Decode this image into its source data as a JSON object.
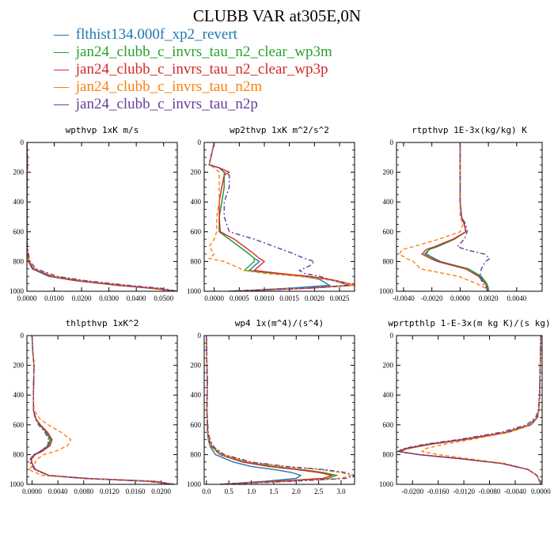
{
  "figure": {
    "title": "CLUBB VAR at305E,0N"
  },
  "legend": [
    {
      "marker": "—",
      "label": "flthist134.000f_xp2_revert",
      "color": "#1f77b4"
    },
    {
      "marker": "—",
      "label": "jan24_clubb_c_invrs_tau_n2_clear_wp3m",
      "color": "#2ca02c"
    },
    {
      "marker": "—",
      "label": "jan24_clubb_c_invrs_tau_n2_clear_wp3p",
      "color": "#d62728"
    },
    {
      "marker": "—",
      "label": "jan24_clubb_c_invrs_tau_n2m",
      "color": "#ff7f0e"
    },
    {
      "marker": "—",
      "label": "jan24_clubb_c_invrs_tau_n2p",
      "color": "#6a3d9a"
    }
  ],
  "chart_data": [
    {
      "type": "line",
      "title": "wpthvp 1xK m/s",
      "ylim": [
        1000,
        0
      ],
      "xlim": [
        0,
        0.055
      ],
      "xticks": [
        "0.0000",
        "0.0100",
        "0.0200",
        "0.0300",
        "0.0400",
        "0.0500"
      ],
      "xtick_values": [
        0,
        0.01,
        0.02,
        0.03,
        0.04,
        0.05
      ],
      "yticks": [
        "0",
        "200",
        "400",
        "600",
        "800",
        "1000"
      ],
      "y": [
        0,
        150,
        300,
        500,
        600,
        700,
        800,
        850,
        900,
        930,
        960,
        980,
        1000
      ],
      "series": [
        {
          "x": [
            0,
            0.0002,
            0,
            0,
            0,
            0,
            0.0005,
            0.002,
            0.008,
            0.018,
            0.033,
            0.045,
            0.055
          ]
        },
        {
          "x": [
            0,
            0.0002,
            0,
            0,
            0,
            0,
            0.0006,
            0.0025,
            0.009,
            0.019,
            0.034,
            0.046,
            0.055
          ]
        },
        {
          "x": [
            0,
            0.0002,
            0,
            0,
            0,
            0,
            0.0006,
            0.0024,
            0.009,
            0.019,
            0.034,
            0.046,
            0.055
          ]
        },
        {
          "x": [
            0,
            0.0002,
            0,
            0,
            0,
            0,
            0.0008,
            0.003,
            0.01,
            0.021,
            0.036,
            0.048,
            0.055
          ]
        },
        {
          "x": [
            0,
            0.0002,
            0,
            0,
            0,
            0.0002,
            0.001,
            0.0035,
            0.011,
            0.022,
            0.037,
            0.049,
            0.055
          ]
        }
      ]
    },
    {
      "type": "line",
      "title": "wp2thvp 1xK m^2/s^2",
      "ylim": [
        1000,
        0
      ],
      "xlim": [
        -0.0002,
        0.0028
      ],
      "xticks": [
        "0.0000",
        "0.0005",
        "0.0010",
        "0.0015",
        "0.0020",
        "0.0025"
      ],
      "xtick_values": [
        0,
        0.0005,
        0.001,
        0.0015,
        0.002,
        0.0025
      ],
      "yticks": [
        "0",
        "200",
        "400",
        "600",
        "800",
        "1000"
      ],
      "y": [
        0,
        150,
        170,
        200,
        220,
        300,
        400,
        500,
        600,
        650,
        700,
        750,
        780,
        800,
        830,
        860,
        880,
        900,
        920,
        940,
        960,
        980,
        1000
      ],
      "series": [
        {
          "x": [
            0,
            -0.0001,
            0.0001,
            0.0002,
            0.0002,
            0.0002,
            0.00015,
            0.0001,
            0.0001,
            0.0003,
            0.0005,
            0.0007,
            0.0008,
            0.0009,
            0.0008,
            0.0007,
            0.0012,
            0.0018,
            0.0021,
            0.0022,
            0.0023,
            0.0015,
            0.0003
          ]
        },
        {
          "x": [
            0,
            -0.0001,
            0.0001,
            0.0002,
            0.0002,
            0.0002,
            0.00015,
            0.0001,
            0.0001,
            0.0003,
            0.0005,
            0.0007,
            0.0008,
            0.0008,
            0.0007,
            0.0006,
            0.0012,
            0.0019,
            0.0023,
            0.0025,
            0.0027,
            0.0018,
            0.0003
          ]
        },
        {
          "x": [
            0,
            -0.0001,
            0.0001,
            0.0003,
            0.0002,
            0.00015,
            0.0001,
            0.0001,
            0.00012,
            0.0004,
            0.0006,
            0.0008,
            0.0009,
            0.001,
            0.0009,
            0.0008,
            0.0013,
            0.0019,
            0.0023,
            0.0026,
            0.0028,
            0.0019,
            0.0004
          ]
        },
        {
          "x": [
            0,
            -0.0001,
            0,
            0.0001,
            0.0001,
            0.0001,
            0.0001,
            5e-05,
            5e-05,
            0,
            -0.0001,
            0,
            -0.0001,
            0.0002,
            0.0004,
            0.0006,
            0.001,
            0.0017,
            0.0022,
            0.0026,
            0.0028,
            0.0017,
            0.0003
          ]
        },
        {
          "x": [
            0,
            -0.0001,
            0.0001,
            0.0002,
            0.0003,
            0.0003,
            0.0002,
            0.0002,
            0.0003,
            0.0008,
            0.0012,
            0.0016,
            0.0018,
            0.002,
            0.0019,
            0.0017,
            0.0018,
            0.0021,
            0.0023,
            0.0025,
            0.0027,
            0.0018,
            0.0003
          ]
        }
      ]
    },
    {
      "type": "line",
      "title": "rtpthvp 1E-3x(kg/kg) K",
      "ylim": [
        1000,
        0
      ],
      "xlim": [
        -0.0045,
        0.0058
      ],
      "xticks": [
        "-0.0040",
        "-0.0020",
        "0.0000",
        "0.0020",
        "0.0040"
      ],
      "xtick_values": [
        -0.004,
        -0.002,
        0,
        0.002,
        0.004
      ],
      "yticks": [
        "0",
        "200",
        "400",
        "600",
        "800",
        "1000"
      ],
      "y": [
        0,
        200,
        400,
        500,
        550,
        600,
        650,
        700,
        720,
        750,
        780,
        800,
        850,
        900,
        950,
        980,
        1000
      ],
      "series": [
        {
          "x": [
            0,
            0,
            0,
            0.0001,
            0.0003,
            0.0004,
            -0.0004,
            -0.0016,
            -0.0022,
            -0.0024,
            -0.0018,
            -0.0014,
            0.0006,
            0.0014,
            0.0019,
            0.0019,
            0.0019
          ]
        },
        {
          "x": [
            0,
            0,
            0,
            0.0001,
            0.0003,
            0.0004,
            -0.0004,
            -0.0016,
            -0.0022,
            -0.0025,
            -0.0019,
            -0.0015,
            0.0006,
            0.0015,
            0.0019,
            0.002,
            0.002
          ]
        },
        {
          "x": [
            0,
            0,
            0,
            0.0001,
            0.0003,
            0.0004,
            -0.0005,
            -0.0018,
            -0.0024,
            -0.0027,
            -0.0021,
            -0.0016,
            0.0004,
            0.0013,
            0.0018,
            0.0019,
            0.0019
          ]
        },
        {
          "x": [
            0,
            0,
            0,
            0,
            0.0002,
            0,
            -0.0015,
            -0.0033,
            -0.0041,
            -0.0043,
            -0.0038,
            -0.0033,
            -0.0028,
            -0.0001,
            0.0012,
            0.0018,
            0.0019
          ]
        },
        {
          "x": [
            0,
            0,
            0,
            0.0001,
            0.0004,
            0.0005,
            0.0003,
            -0.0002,
            0.0004,
            0.0017,
            0.0021,
            0.0018,
            0.0015,
            0.0014,
            0.0016,
            0.0019,
            0.002
          ]
        }
      ]
    },
    {
      "type": "line",
      "title": "thlpthvp 1xK^2",
      "ylim": [
        1000,
        0
      ],
      "xlim": [
        -0.0008,
        0.0225
      ],
      "xticks": [
        "0.0000",
        "0.0040",
        "0.0080",
        "0.0120",
        "0.0160",
        "0.0200"
      ],
      "xtick_values": [
        0,
        0.004,
        0.008,
        0.012,
        0.016,
        0.02
      ],
      "yticks": [
        "0",
        "200",
        "400",
        "600",
        "800",
        "1000"
      ],
      "y": [
        0,
        100,
        200,
        400,
        500,
        560,
        600,
        650,
        700,
        740,
        780,
        800,
        830,
        860,
        900,
        940,
        960,
        980,
        1000
      ],
      "series": [
        {
          "x": [
            0,
            0.0001,
            0.0003,
            0.0002,
            0.0002,
            0.0006,
            0.0012,
            0.0022,
            0.0028,
            0.0025,
            0.0012,
            0.0003,
            -0.0002,
            0,
            0.0005,
            0.0025,
            0.008,
            0.018,
            0.022
          ]
        },
        {
          "x": [
            0,
            0.0001,
            0.0003,
            0.0002,
            0.0002,
            0.0006,
            0.0012,
            0.0022,
            0.0029,
            0.0026,
            0.0013,
            0.0004,
            -0.0002,
            0,
            0.0005,
            0.0026,
            0.0085,
            0.019,
            0.022
          ]
        },
        {
          "x": [
            0,
            0.0001,
            0.0003,
            0.0002,
            0.0002,
            0.0006,
            0.0013,
            0.0024,
            0.0031,
            0.0028,
            0.0015,
            0.0005,
            -0.0001,
            0,
            0.0005,
            0.0026,
            0.0085,
            0.019,
            0.022
          ]
        },
        {
          "x": [
            0,
            0.0001,
            0.0003,
            0.0002,
            0.0003,
            0.0012,
            0.0025,
            0.0045,
            0.006,
            0.0055,
            0.0035,
            0.0018,
            0.0008,
            0.0004,
            -0.0005,
            0.0015,
            0.008,
            0.018,
            0.022
          ]
        },
        {
          "x": [
            0,
            0.0001,
            0.0003,
            0.0002,
            0.0002,
            0.0005,
            0.001,
            0.002,
            0.0026,
            0.0024,
            0.0012,
            0.0003,
            -0.0003,
            -0.0002,
            0.0004,
            0.0025,
            0.008,
            0.018,
            0.022
          ]
        }
      ]
    },
    {
      "type": "line",
      "title": "wp4 1x(m^4)/(s^4)",
      "ylim": [
        1000,
        0
      ],
      "xlim": [
        -0.05,
        3.3
      ],
      "xticks": [
        "0.0",
        "0.5",
        "1.0",
        "1.5",
        "2.0",
        "2.5",
        "3.0"
      ],
      "xtick_values": [
        0,
        0.5,
        1,
        1.5,
        2,
        2.5,
        3
      ],
      "yticks": [
        "0",
        "200",
        "400",
        "600",
        "800",
        "1000"
      ],
      "y": [
        0,
        200,
        300,
        500,
        650,
        700,
        750,
        800,
        850,
        880,
        900,
        920,
        940,
        960,
        980,
        1000
      ],
      "series": [
        {
          "x": [
            0,
            0.01,
            0.02,
            0.01,
            0.02,
            0.04,
            0.09,
            0.2,
            0.6,
            1.0,
            1.5,
            1.9,
            2.1,
            2.0,
            1.3,
            0.3
          ]
        },
        {
          "x": [
            0,
            0.01,
            0.02,
            0.01,
            0.03,
            0.06,
            0.14,
            0.35,
            0.9,
            1.5,
            2.1,
            2.6,
            2.9,
            2.7,
            1.6,
            0.3
          ]
        },
        {
          "x": [
            0,
            0.01,
            0.02,
            0.01,
            0.03,
            0.05,
            0.12,
            0.3,
            0.8,
            1.4,
            2.0,
            2.5,
            2.8,
            2.6,
            1.5,
            0.3
          ]
        },
        {
          "x": [
            0,
            0.01,
            0.02,
            0.01,
            0.03,
            0.05,
            0.12,
            0.32,
            0.95,
            1.7,
            2.5,
            3.0,
            3.2,
            3.0,
            1.8,
            0.3
          ]
        },
        {
          "x": [
            0,
            0.01,
            0.02,
            0.01,
            0.04,
            0.08,
            0.17,
            0.4,
            1.0,
            1.8,
            2.6,
            3.1,
            3.3,
            3.1,
            1.9,
            0.3
          ]
        }
      ]
    },
    {
      "type": "line",
      "title": "wprtpthlp 1-E-3x(m kg K)/(s kg)",
      "ylim": [
        1000,
        0
      ],
      "xlim": [
        -0.0225,
        0.0002
      ],
      "xticks": [
        "-0.0200",
        "-0.0160",
        "-0.0120",
        "-0.0080",
        "-0.0040",
        "0.0000"
      ],
      "xtick_values": [
        -0.02,
        -0.016,
        -0.012,
        -0.008,
        -0.004,
        0
      ],
      "yticks": [
        "0",
        "200",
        "400",
        "600",
        "800",
        "1000"
      ],
      "y": [
        0,
        200,
        400,
        500,
        550,
        600,
        650,
        700,
        730,
        760,
        780,
        800,
        830,
        860,
        900,
        940,
        980,
        1000
      ],
      "series": [
        {
          "x": [
            0,
            -0.0001,
            -0.0002,
            -0.0003,
            -0.0005,
            -0.0015,
            -0.005,
            -0.012,
            -0.017,
            -0.021,
            -0.022,
            -0.019,
            -0.012,
            -0.006,
            -0.002,
            -0.0006,
            -0.0002,
            0
          ]
        },
        {
          "x": [
            0,
            -0.0001,
            -0.0002,
            -0.0003,
            -0.0006,
            -0.0018,
            -0.0055,
            -0.0125,
            -0.0175,
            -0.0212,
            -0.0222,
            -0.019,
            -0.012,
            -0.006,
            -0.002,
            -0.0006,
            -0.0002,
            0
          ]
        },
        {
          "x": [
            0,
            -0.0001,
            -0.0002,
            -0.0003,
            -0.0006,
            -0.0017,
            -0.0053,
            -0.0122,
            -0.0172,
            -0.0208,
            -0.022,
            -0.019,
            -0.012,
            -0.006,
            -0.002,
            -0.0006,
            -0.0002,
            0
          ]
        },
        {
          "x": [
            0,
            -0.0001,
            -0.0002,
            -0.0003,
            -0.0006,
            -0.0016,
            -0.005,
            -0.011,
            -0.015,
            -0.018,
            -0.0185,
            -0.016,
            -0.011,
            -0.0055,
            -0.002,
            -0.0006,
            -0.0002,
            0
          ]
        },
        {
          "x": [
            0,
            -0.0001,
            -0.0002,
            -0.0004,
            -0.0008,
            -0.0022,
            -0.0062,
            -0.013,
            -0.018,
            -0.0215,
            -0.0223,
            -0.019,
            -0.012,
            -0.006,
            -0.002,
            -0.0006,
            -0.0002,
            0
          ]
        }
      ]
    }
  ]
}
